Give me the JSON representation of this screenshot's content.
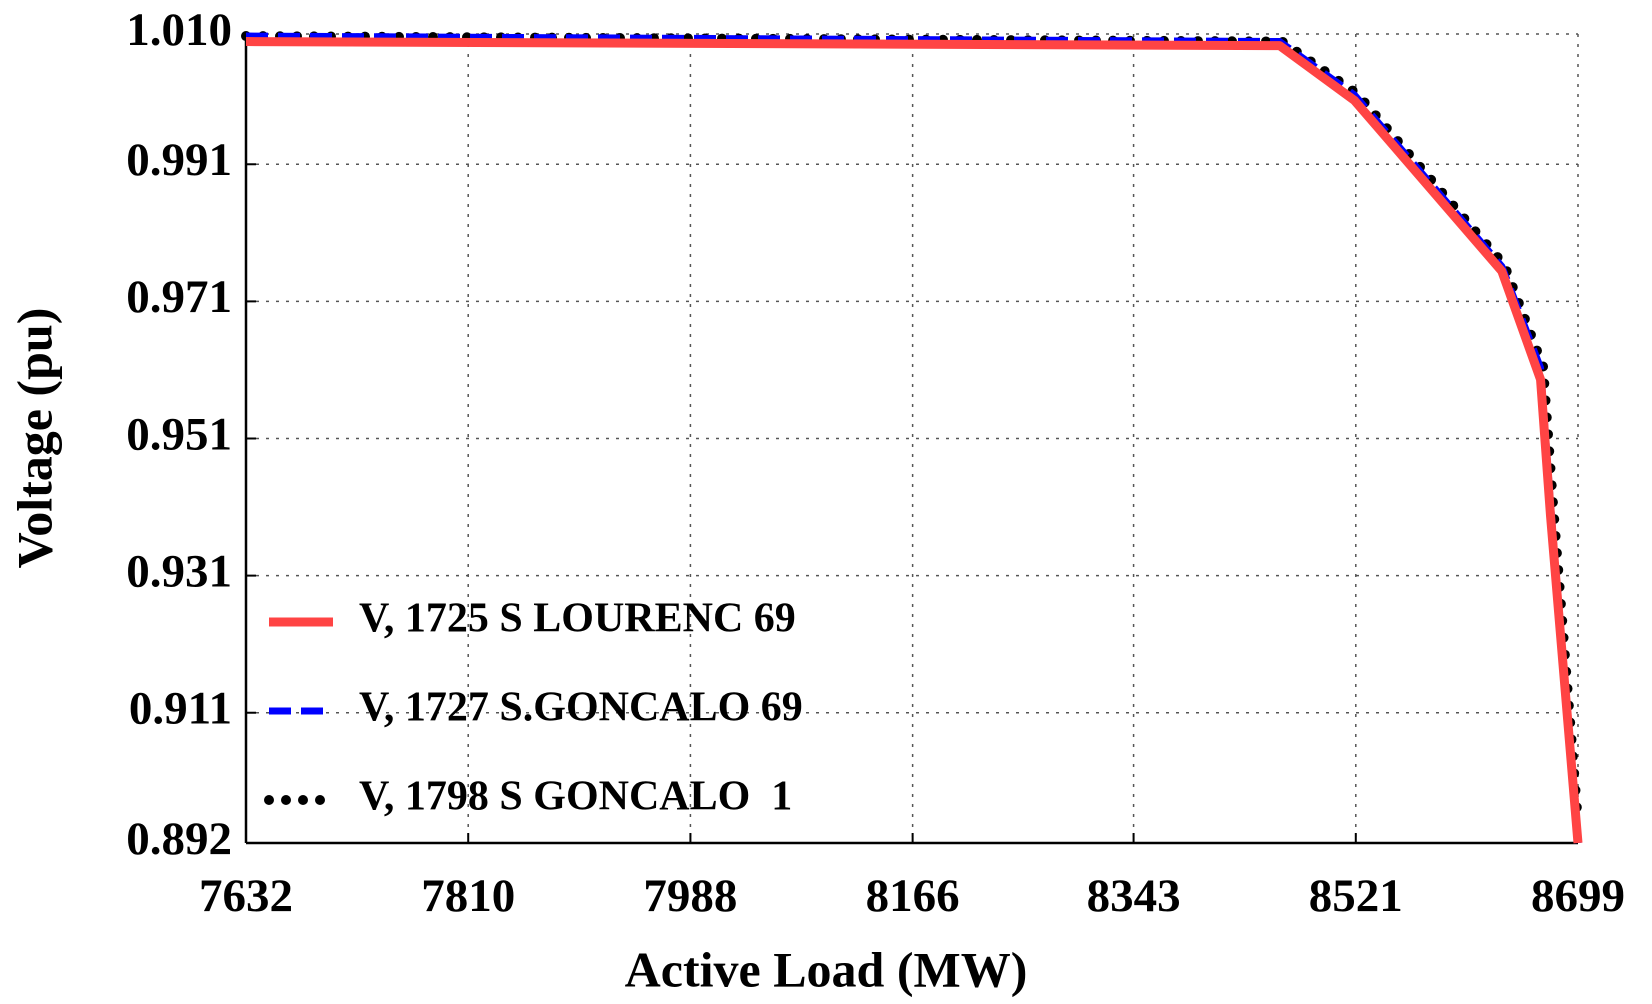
{
  "chart_data": {
    "type": "line",
    "xlabel": "Active Load (MW)",
    "ylabel": "Voltage (pu)",
    "xlim": [
      7632,
      8699
    ],
    "xticks": [
      7632,
      7810,
      7988,
      8166,
      8343,
      8521,
      8699
    ],
    "ylim": [
      0.892,
      1.01
    ],
    "yticks": [
      0.892,
      0.911,
      0.931,
      0.951,
      0.971,
      0.991,
      {
        "value": 1.01,
        "label": "1.010"
      }
    ],
    "grid": true,
    "legend": "lower left",
    "series": [
      {
        "name": "V, 1725 S LOURENC 69",
        "color": "#ff4444",
        "style": "solid",
        "x": [
          7632,
          8460,
          8520,
          8638,
          8669,
          8677,
          8699
        ],
        "values": [
          1.0089,
          1.0083,
          1.0003,
          0.9754,
          0.9596,
          0.9397,
          0.892
        ]
      },
      {
        "name": "V, 1727 S.GONCALO 69",
        "color": "#0000ff",
        "style": "dashed",
        "x": [
          7632,
          8460,
          8520,
          8638,
          8669,
          8677,
          8699
        ],
        "values": [
          1.0097,
          1.0089,
          1.0011,
          0.9761,
          0.9613,
          0.9413,
          0.892
        ]
      },
      {
        "name": "V, 1798 S GONCALO  1",
        "color": "#000000",
        "style": "dotted",
        "x": [
          7632,
          8462,
          8522,
          8640,
          8671,
          8679,
          8699
        ],
        "values": [
          1.0097,
          1.0089,
          1.0013,
          0.9763,
          0.9615,
          0.9415,
          0.895
        ]
      }
    ]
  }
}
